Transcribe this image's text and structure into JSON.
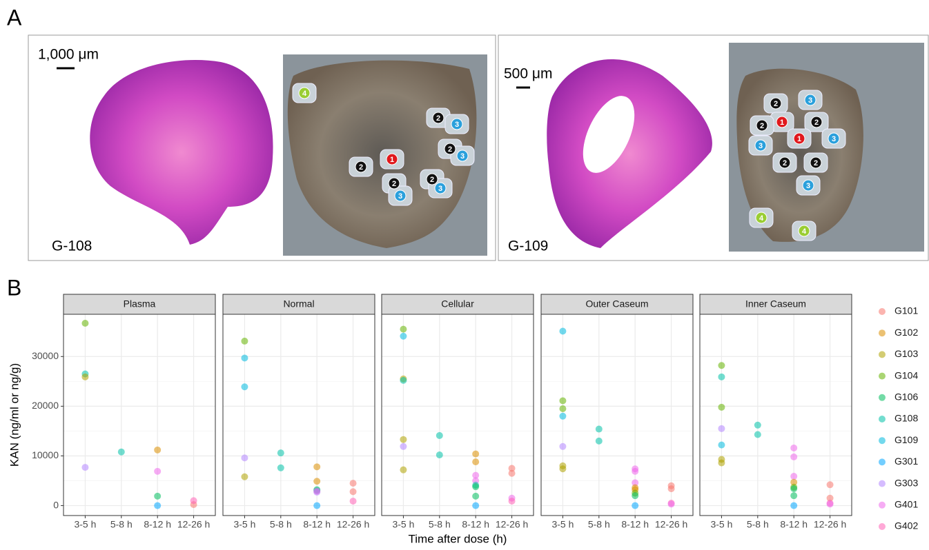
{
  "panel_a": {
    "label": "A",
    "images": [
      {
        "scale": "1,000 μm",
        "id": "G-108",
        "regions": [
          {
            "label": "4",
            "color": "#9acd32"
          },
          {
            "label": "2",
            "color": "#111"
          },
          {
            "label": "3",
            "color": "#2aa0dc"
          },
          {
            "label": "2",
            "color": "#111"
          },
          {
            "label": "3",
            "color": "#2aa0dc"
          },
          {
            "label": "1",
            "color": "#e0191d"
          },
          {
            "label": "2",
            "color": "#111"
          },
          {
            "label": "2",
            "color": "#111"
          },
          {
            "label": "2",
            "color": "#111"
          },
          {
            "label": "3",
            "color": "#2aa0dc"
          },
          {
            "label": "3",
            "color": "#2aa0dc"
          }
        ]
      },
      {
        "scale": "500 μm",
        "id": "G-109",
        "regions": [
          {
            "label": "3",
            "color": "#2aa0dc"
          },
          {
            "label": "2",
            "color": "#111"
          },
          {
            "label": "1",
            "color": "#e0191d"
          },
          {
            "label": "2",
            "color": "#111"
          },
          {
            "label": "2",
            "color": "#111"
          },
          {
            "label": "1",
            "color": "#e0191d"
          },
          {
            "label": "3",
            "color": "#2aa0dc"
          },
          {
            "label": "3",
            "color": "#2aa0dc"
          },
          {
            "label": "2",
            "color": "#111"
          },
          {
            "label": "2",
            "color": "#111"
          },
          {
            "label": "3",
            "color": "#2aa0dc"
          },
          {
            "label": "4",
            "color": "#9acd32"
          },
          {
            "label": "4",
            "color": "#9acd32"
          }
        ]
      }
    ]
  },
  "chart_data": {
    "type": "scatter",
    "label": "B",
    "y_label": "KAN (ng/ml or ng/g)",
    "x_label": "Time after dose (h)",
    "categories": [
      "3-5 h",
      "5-8 h",
      "8-12 h",
      "12-26 h"
    ],
    "ylim": [
      -2000,
      38500
    ],
    "yticks": [
      0,
      10000,
      20000,
      30000
    ],
    "grid": true,
    "legend_position": "right",
    "groups": [
      {
        "name": "G101",
        "color": "#F8766D"
      },
      {
        "name": "G102",
        "color": "#DB8E00"
      },
      {
        "name": "G103",
        "color": "#AEA200"
      },
      {
        "name": "G104",
        "color": "#64B200"
      },
      {
        "name": "G106",
        "color": "#00BD5C"
      },
      {
        "name": "G108",
        "color": "#00C1A7"
      },
      {
        "name": "G109",
        "color": "#00BADE"
      },
      {
        "name": "G301",
        "color": "#00A6FF"
      },
      {
        "name": "G303",
        "color": "#B385FF"
      },
      {
        "name": "G401",
        "color": "#EF67EB"
      },
      {
        "name": "G402",
        "color": "#FF63B6"
      }
    ],
    "facets": [
      {
        "title": "Plasma",
        "points": [
          {
            "x": "3-5 h",
            "y": 36700,
            "group": "G104"
          },
          {
            "x": "3-5 h",
            "y": 26500,
            "group": "G108"
          },
          {
            "x": "3-5 h",
            "y": 25900,
            "group": "G103"
          },
          {
            "x": "3-5 h",
            "y": 7700,
            "group": "G303"
          },
          {
            "x": "5-8 h",
            "y": 10800,
            "group": "G108"
          },
          {
            "x": "8-12 h",
            "y": 11200,
            "group": "G102"
          },
          {
            "x": "8-12 h",
            "y": 6900,
            "group": "G401"
          },
          {
            "x": "8-12 h",
            "y": 1900,
            "group": "G106"
          },
          {
            "x": "8-12 h",
            "y": 0,
            "group": "G301"
          },
          {
            "x": "12-26 h",
            "y": 200,
            "group": "G101"
          },
          {
            "x": "12-26 h",
            "y": 1000,
            "group": "G402"
          }
        ]
      },
      {
        "title": "Normal",
        "points": [
          {
            "x": "3-5 h",
            "y": 33100,
            "group": "G104"
          },
          {
            "x": "3-5 h",
            "y": 29700,
            "group": "G109"
          },
          {
            "x": "3-5 h",
            "y": 23900,
            "group": "G109"
          },
          {
            "x": "3-5 h",
            "y": 9600,
            "group": "G303"
          },
          {
            "x": "3-5 h",
            "y": 5800,
            "group": "G103"
          },
          {
            "x": "5-8 h",
            "y": 10600,
            "group": "G108"
          },
          {
            "x": "5-8 h",
            "y": 7600,
            "group": "G108"
          },
          {
            "x": "8-12 h",
            "y": 7800,
            "group": "G102"
          },
          {
            "x": "8-12 h",
            "y": 4900,
            "group": "G102"
          },
          {
            "x": "8-12 h",
            "y": 3200,
            "group": "G106"
          },
          {
            "x": "8-12 h",
            "y": 3000,
            "group": "G108"
          },
          {
            "x": "8-12 h",
            "y": 2700,
            "group": "G303"
          },
          {
            "x": "8-12 h",
            "y": 2900,
            "group": "G401"
          },
          {
            "x": "8-12 h",
            "y": 0,
            "group": "G301"
          },
          {
            "x": "12-26 h",
            "y": 4500,
            "group": "G101"
          },
          {
            "x": "12-26 h",
            "y": 2800,
            "group": "G101"
          },
          {
            "x": "12-26 h",
            "y": 900,
            "group": "G402"
          }
        ]
      },
      {
        "title": "Cellular",
        "points": [
          {
            "x": "3-5 h",
            "y": 35500,
            "group": "G104"
          },
          {
            "x": "3-5 h",
            "y": 34100,
            "group": "G109"
          },
          {
            "x": "3-5 h",
            "y": 25500,
            "group": "G103"
          },
          {
            "x": "3-5 h",
            "y": 25200,
            "group": "G108"
          },
          {
            "x": "3-5 h",
            "y": 13300,
            "group": "G103"
          },
          {
            "x": "3-5 h",
            "y": 11900,
            "group": "G303"
          },
          {
            "x": "3-5 h",
            "y": 7200,
            "group": "G103"
          },
          {
            "x": "5-8 h",
            "y": 14100,
            "group": "G108"
          },
          {
            "x": "5-8 h",
            "y": 10200,
            "group": "G108"
          },
          {
            "x": "8-12 h",
            "y": 10400,
            "group": "G102"
          },
          {
            "x": "8-12 h",
            "y": 8800,
            "group": "G102"
          },
          {
            "x": "8-12 h",
            "y": 6100,
            "group": "G401"
          },
          {
            "x": "8-12 h",
            "y": 5000,
            "group": "G401"
          },
          {
            "x": "8-12 h",
            "y": 4100,
            "group": "G108"
          },
          {
            "x": "8-12 h",
            "y": 3800,
            "group": "G106"
          },
          {
            "x": "8-12 h",
            "y": 1900,
            "group": "G106"
          },
          {
            "x": "8-12 h",
            "y": 0,
            "group": "G301"
          },
          {
            "x": "12-26 h",
            "y": 7500,
            "group": "G101"
          },
          {
            "x": "12-26 h",
            "y": 6500,
            "group": "G101"
          },
          {
            "x": "12-26 h",
            "y": 1500,
            "group": "G401"
          },
          {
            "x": "12-26 h",
            "y": 900,
            "group": "G402"
          }
        ]
      },
      {
        "title": "Outer Caseum",
        "points": [
          {
            "x": "3-5 h",
            "y": 35100,
            "group": "G109"
          },
          {
            "x": "3-5 h",
            "y": 21100,
            "group": "G104"
          },
          {
            "x": "3-5 h",
            "y": 19500,
            "group": "G104"
          },
          {
            "x": "3-5 h",
            "y": 18000,
            "group": "G109"
          },
          {
            "x": "3-5 h",
            "y": 11900,
            "group": "G303"
          },
          {
            "x": "3-5 h",
            "y": 8000,
            "group": "G103"
          },
          {
            "x": "3-5 h",
            "y": 7400,
            "group": "G103"
          },
          {
            "x": "5-8 h",
            "y": 15400,
            "group": "G108"
          },
          {
            "x": "5-8 h",
            "y": 13000,
            "group": "G108"
          },
          {
            "x": "8-12 h",
            "y": 7400,
            "group": "G401"
          },
          {
            "x": "8-12 h",
            "y": 6900,
            "group": "G401"
          },
          {
            "x": "8-12 h",
            "y": 4600,
            "group": "G401"
          },
          {
            "x": "8-12 h",
            "y": 3600,
            "group": "G102"
          },
          {
            "x": "8-12 h",
            "y": 3200,
            "group": "G102"
          },
          {
            "x": "8-12 h",
            "y": 2500,
            "group": "G104"
          },
          {
            "x": "8-12 h",
            "y": 2000,
            "group": "G106"
          },
          {
            "x": "8-12 h",
            "y": 0,
            "group": "G301"
          },
          {
            "x": "12-26 h",
            "y": 4000,
            "group": "G101"
          },
          {
            "x": "12-26 h",
            "y": 3400,
            "group": "G101"
          },
          {
            "x": "12-26 h",
            "y": 500,
            "group": "G402"
          },
          {
            "x": "12-26 h",
            "y": 300,
            "group": "G401"
          }
        ]
      },
      {
        "title": "Inner Caseum",
        "points": [
          {
            "x": "3-5 h",
            "y": 28200,
            "group": "G104"
          },
          {
            "x": "3-5 h",
            "y": 25900,
            "group": "G108"
          },
          {
            "x": "3-5 h",
            "y": 19800,
            "group": "G104"
          },
          {
            "x": "3-5 h",
            "y": 15500,
            "group": "G303"
          },
          {
            "x": "3-5 h",
            "y": 12200,
            "group": "G109"
          },
          {
            "x": "3-5 h",
            "y": 9300,
            "group": "G103"
          },
          {
            "x": "3-5 h",
            "y": 8600,
            "group": "G103"
          },
          {
            "x": "5-8 h",
            "y": 16200,
            "group": "G108"
          },
          {
            "x": "5-8 h",
            "y": 14300,
            "group": "G108"
          },
          {
            "x": "8-12 h",
            "y": 11600,
            "group": "G401"
          },
          {
            "x": "8-12 h",
            "y": 9800,
            "group": "G401"
          },
          {
            "x": "8-12 h",
            "y": 5900,
            "group": "G401"
          },
          {
            "x": "8-12 h",
            "y": 4700,
            "group": "G102"
          },
          {
            "x": "8-12 h",
            "y": 3700,
            "group": "G104"
          },
          {
            "x": "8-12 h",
            "y": 3400,
            "group": "G106"
          },
          {
            "x": "8-12 h",
            "y": 2000,
            "group": "G106"
          },
          {
            "x": "8-12 h",
            "y": 0,
            "group": "G301"
          },
          {
            "x": "12-26 h",
            "y": 4200,
            "group": "G101"
          },
          {
            "x": "12-26 h",
            "y": 1500,
            "group": "G101"
          },
          {
            "x": "12-26 h",
            "y": 500,
            "group": "G402"
          },
          {
            "x": "12-26 h",
            "y": 300,
            "group": "G401"
          }
        ]
      }
    ]
  }
}
